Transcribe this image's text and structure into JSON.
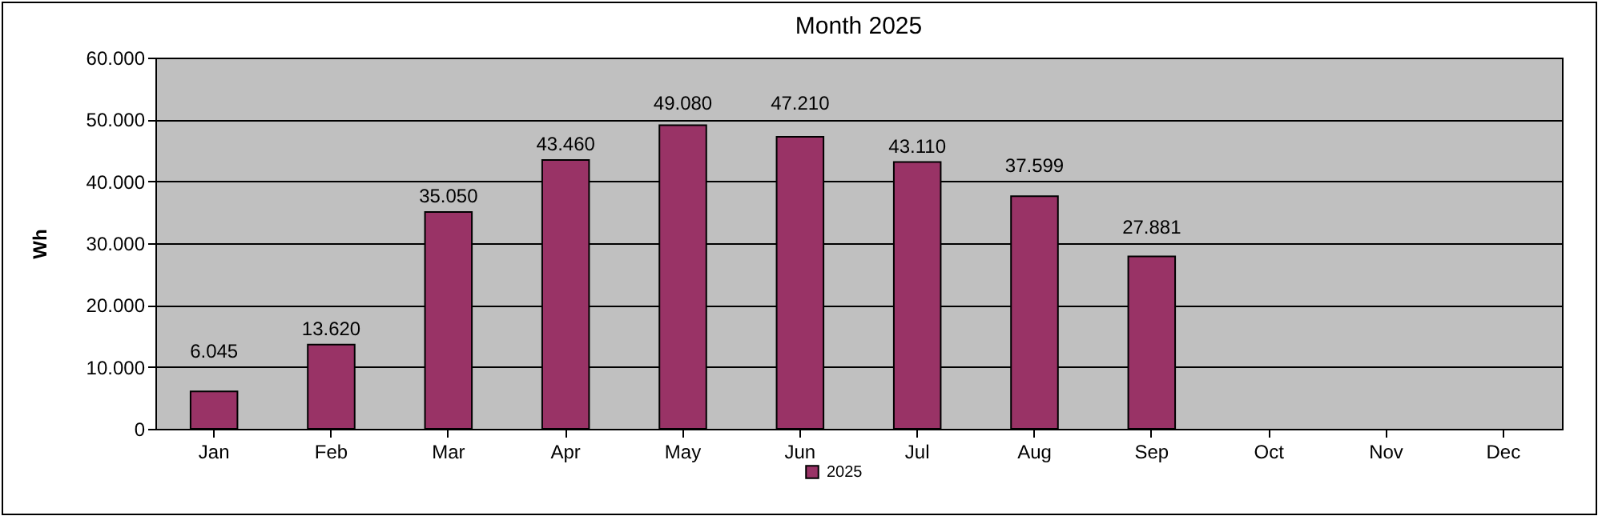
{
  "chart_data": {
    "type": "bar",
    "title": "Month 2025",
    "ylabel": "Wh",
    "categories": [
      "Jan",
      "Feb",
      "Mar",
      "Apr",
      "May",
      "Jun",
      "Jul",
      "Aug",
      "Sep",
      "Oct",
      "Nov",
      "Dec"
    ],
    "series": [
      {
        "name": "2025",
        "color": "#993366",
        "values": [
          6045,
          13620,
          35050,
          43460,
          49080,
          47210,
          43110,
          37599,
          27881,
          null,
          null,
          null
        ],
        "value_labels": [
          "6.045",
          "13.620",
          "35.050",
          "43.460",
          "49.080",
          "47.210",
          "43.110",
          "37.599",
          "27.881",
          null,
          null,
          null
        ]
      }
    ],
    "ylim": [
      0,
      60000
    ],
    "yticks": [
      0,
      {
        "value": 10000,
        "label": "10.000"
      },
      {
        "value": 20000,
        "label": "20.000"
      },
      {
        "value": 30000,
        "label": "30.000"
      },
      {
        "value": 40000,
        "label": "40.000"
      },
      {
        "value": 50000,
        "label": "50.000"
      },
      {
        "value": 60000,
        "label": "60.000"
      }
    ],
    "grid": "y",
    "legend": "bottom"
  }
}
